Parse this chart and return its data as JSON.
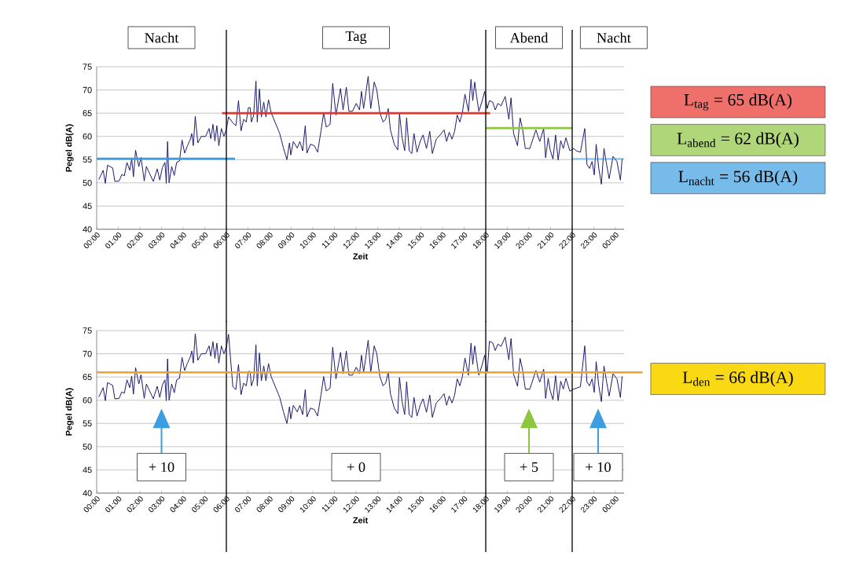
{
  "chart_data": [
    {
      "type": "line",
      "xlabel": "Zeit",
      "ylabel": "Pegel dB(A)",
      "annotations": [
        "Nacht",
        "Tag",
        "Abend",
        "Nacht"
      ],
      "xlim": [
        0,
        24.4
      ],
      "ylim": [
        40,
        75
      ],
      "yticks": [
        40,
        45,
        50,
        55,
        60,
        65,
        70,
        75
      ],
      "xticks": [
        {
          "value": 0,
          "label": "00:00"
        },
        {
          "value": 1,
          "label": "01:00"
        },
        {
          "value": 2,
          "label": "02:00"
        },
        {
          "value": 3,
          "label": "03:00"
        },
        {
          "value": 4,
          "label": "04:00"
        },
        {
          "value": 5,
          "label": "05:00"
        },
        {
          "value": 6,
          "label": "06:00"
        },
        {
          "value": 7,
          "label": "07:00"
        },
        {
          "value": 8,
          "label": "08:00"
        },
        {
          "value": 9,
          "label": "09:00"
        },
        {
          "value": 10,
          "label": "10:00"
        },
        {
          "value": 11,
          "label": "11:00"
        },
        {
          "value": 12,
          "label": "12:00"
        },
        {
          "value": 13,
          "label": "13:00"
        },
        {
          "value": 14,
          "label": "14:00"
        },
        {
          "value": 15,
          "label": "15:00"
        },
        {
          "value": 16,
          "label": "16:00"
        },
        {
          "value": 17,
          "label": "17:00"
        },
        {
          "value": 18,
          "label": "18:00"
        },
        {
          "value": 19,
          "label": "19:00"
        },
        {
          "value": 20,
          "label": "20:00"
        },
        {
          "value": 21,
          "label": "21:00"
        },
        {
          "value": 22,
          "label": "22:00"
        },
        {
          "value": 23,
          "label": "23:00"
        },
        {
          "value": 24,
          "label": "00:00"
        }
      ],
      "grid": "y",
      "legend": "right",
      "marker": "none",
      "ref_lines": [
        {
          "axis": "x",
          "value": 6,
          "color": "#000000"
        },
        {
          "axis": "x",
          "value": 18,
          "color": "#000000"
        },
        {
          "axis": "x",
          "value": 22,
          "color": "#000000"
        }
      ],
      "series": [
        {
          "color": "#1a1a6e",
          "x": [
            0.1,
            0.3,
            0.4,
            0.5,
            0.74,
            0.84,
            1.04,
            1.16,
            1.28,
            1.4,
            1.53,
            1.62,
            1.7,
            1.8,
            1.95,
            2.05,
            2.2,
            2.3,
            2.44,
            2.62,
            2.8,
            2.92,
            3.04,
            3.16,
            3.22,
            3.28,
            3.35,
            3.47,
            3.59,
            3.7,
            3.83,
            3.95,
            4.07,
            4.2,
            4.32,
            4.4,
            4.47,
            4.56,
            4.68,
            4.84,
            5.04,
            5.2,
            5.28,
            5.38,
            5.47,
            5.56,
            5.65,
            5.77,
            5.89,
            6.01,
            6.1,
            6.3,
            6.44,
            6.56,
            6.68,
            6.8,
            6.92,
            7.02,
            7.1,
            7.16,
            7.26,
            7.37,
            7.43,
            7.53,
            7.62,
            7.73,
            7.83,
            7.95,
            8.07,
            8.32,
            8.47,
            8.64,
            8.8,
            8.92,
            8.98,
            9.1,
            9.28,
            9.4,
            9.53,
            9.65,
            9.73,
            9.89,
            10.07,
            10.22,
            10.38,
            10.5,
            10.62,
            10.8,
            10.92,
            11.07,
            11.28,
            11.4,
            11.55,
            11.67,
            11.83,
            12.01,
            12.16,
            12.25,
            12.35,
            12.44,
            12.56,
            12.68,
            12.84,
            12.96,
            13.1,
            13.25,
            13.37,
            13.49,
            13.59,
            13.77,
            13.93,
            14.01,
            14.13,
            14.25,
            14.34,
            14.46,
            14.58,
            14.68,
            14.82,
            14.98,
            15.1,
            15.26,
            15.41,
            15.53,
            15.71,
            15.89,
            16.07,
            16.19,
            16.31,
            16.44,
            16.56,
            16.68,
            16.8,
            16.92,
            17.04,
            17.2,
            17.32,
            17.4,
            17.49,
            17.58,
            17.68,
            17.82,
            17.95,
            18.07,
            18.17,
            18.32,
            18.44,
            18.56,
            18.71,
            18.9,
            19.07,
            19.17,
            19.29,
            19.47,
            19.59,
            19.71,
            19.83,
            20.04,
            20.32,
            20.5,
            20.68,
            20.77,
            20.89,
            20.98,
            21.11,
            21.23,
            21.35,
            21.47,
            21.59,
            21.71,
            21.89,
            22.07,
            22.19,
            22.38,
            22.58,
            22.68,
            22.8,
            22.92,
            23.02,
            23.11,
            23.23,
            23.35,
            23.47,
            23.59,
            23.71,
            23.89,
            24.07,
            24.23,
            24.31
          ],
          "values": [
            50.7,
            52.7,
            49.9,
            53.8,
            53.2,
            50.3,
            50.4,
            51.8,
            51.5,
            54.4,
            52.7,
            55.2,
            51.3,
            57,
            53.5,
            55.5,
            50.4,
            53.5,
            52.1,
            50.3,
            53,
            50.6,
            53.3,
            54.4,
            49.9,
            58.9,
            50,
            53.5,
            51.6,
            54.4,
            54.7,
            59.2,
            56.4,
            58,
            59.2,
            60.6,
            58,
            64.3,
            58.6,
            60,
            60,
            61.7,
            59.5,
            62.6,
            59,
            62.3,
            58,
            61.7,
            60,
            61.7,
            64.2,
            62.9,
            62.3,
            67.7,
            61.2,
            63.7,
            63.1,
            66.2,
            66.2,
            63.1,
            64.5,
            71.9,
            63.1,
            70.2,
            64.2,
            67.4,
            64.2,
            67.9,
            65.1,
            62.3,
            60.6,
            57.5,
            55,
            58.6,
            56,
            58.9,
            57.5,
            58.9,
            56.9,
            62.3,
            56.4,
            58.3,
            58,
            56.6,
            61.2,
            65.1,
            62,
            62.6,
            71.4,
            64.6,
            70.3,
            65.7,
            70.6,
            65.4,
            65.4,
            67.1,
            65.7,
            69.7,
            66,
            68.9,
            72.9,
            66,
            71.7,
            70,
            65.1,
            63.1,
            63.7,
            66,
            61.4,
            58.3,
            57.1,
            64.9,
            59.7,
            56.9,
            64,
            56.9,
            56.3,
            60.6,
            56.6,
            59.1,
            60.3,
            57.4,
            61.1,
            56.3,
            59.4,
            60.3,
            61.4,
            58.9,
            60.9,
            59.4,
            61.1,
            64.6,
            63.1,
            65.1,
            69.1,
            65.4,
            72.3,
            67.7,
            71.7,
            68.6,
            65.4,
            67.4,
            69.7,
            66,
            67.7,
            67.4,
            65.7,
            67.1,
            66.6,
            68.6,
            63.7,
            68.3,
            60.6,
            58,
            64,
            61.4,
            57.4,
            57.4,
            61.4,
            58.9,
            61.7,
            55.4,
            59.7,
            57.1,
            55.1,
            60.3,
            54.9,
            59.1,
            57.4,
            59.7,
            56.9,
            57.4,
            56.9,
            56.6,
            61.7,
            54,
            53.1,
            54.6,
            51.7,
            58.3,
            53.1,
            49.7,
            57.4,
            54,
            50.9,
            55.7,
            54.6,
            50.6,
            55.1
          ]
        },
        {
          "name": "L$_{tag}$ = 65 dB(A)",
          "color": "#e8322b",
          "x": [
            5.8,
            18.2
          ],
          "values": [
            65,
            65
          ]
        },
        {
          "name": "L$_{abend}$ = 62 dB(A)",
          "color": "#8dc63f",
          "x": [
            18,
            22
          ],
          "values": [
            61.8,
            61.8
          ]
        },
        {
          "name": "L$_{nacht}$ = 56 dB(A)",
          "color": "#3c9ee0",
          "x": [
            0,
            6.4
          ],
          "values": [
            55.2,
            55.2
          ]
        },
        {
          "color": "#3c9ee0",
          "x": [
            22,
            24.4
          ],
          "values": [
            55.2,
            55.2
          ]
        }
      ]
    },
    {
      "type": "line",
      "xlabel": "Zeit",
      "ylabel": "Pegel dB(A)",
      "annotations": [
        "+ 10",
        "+ 0",
        "+ 5",
        "+ 10"
      ],
      "xlim": [
        0,
        24.4
      ],
      "ylim": [
        40,
        75
      ],
      "yticks": [
        40,
        45,
        50,
        55,
        60,
        65,
        70,
        75
      ],
      "xticks": [
        {
          "value": 0,
          "label": "00:00"
        },
        {
          "value": 1,
          "label": "01:00"
        },
        {
          "value": 2,
          "label": "02:00"
        },
        {
          "value": 3,
          "label": "03:00"
        },
        {
          "value": 4,
          "label": "04:00"
        },
        {
          "value": 5,
          "label": "05:00"
        },
        {
          "value": 6,
          "label": "06:00"
        },
        {
          "value": 7,
          "label": "07:00"
        },
        {
          "value": 8,
          "label": "08:00"
        },
        {
          "value": 9,
          "label": "09:00"
        },
        {
          "value": 10,
          "label": "10:00"
        },
        {
          "value": 11,
          "label": "11:00"
        },
        {
          "value": 12,
          "label": "12:00"
        },
        {
          "value": 13,
          "label": "13:00"
        },
        {
          "value": 14,
          "label": "14:00"
        },
        {
          "value": 15,
          "label": "15:00"
        },
        {
          "value": 16,
          "label": "16:00"
        },
        {
          "value": 17,
          "label": "17:00"
        },
        {
          "value": 18,
          "label": "18:00"
        },
        {
          "value": 19,
          "label": "19:00"
        },
        {
          "value": 20,
          "label": "20:00"
        },
        {
          "value": 21,
          "label": "21:00"
        },
        {
          "value": 22,
          "label": "22:00"
        },
        {
          "value": 23,
          "label": "23:00"
        },
        {
          "value": 24,
          "label": "00:00"
        }
      ],
      "grid": "y",
      "marker": "none",
      "ref_lines": [
        {
          "axis": "x",
          "value": 6,
          "color": "#000000"
        },
        {
          "axis": "x",
          "value": 18,
          "color": "#000000"
        },
        {
          "axis": "x",
          "value": 22,
          "color": "#000000"
        },
        {
          "axis": "y",
          "value": 66,
          "label": "L$_{den}$ = 66 dB(A)",
          "color": "#f0a030"
        }
      ],
      "series": [
        {
          "color": "#1a1a6e",
          "x": [
            0.1,
            0.3,
            0.4,
            0.5,
            0.74,
            0.84,
            1.04,
            1.16,
            1.28,
            1.4,
            1.53,
            1.62,
            1.7,
            1.8,
            1.95,
            2.05,
            2.2,
            2.3,
            2.44,
            2.62,
            2.8,
            2.92,
            3.04,
            3.16,
            3.22,
            3.28,
            3.35,
            3.47,
            3.59,
            3.7,
            3.83,
            3.95,
            4.07,
            4.2,
            4.32,
            4.4,
            4.47,
            4.56,
            4.68,
            4.84,
            5.04,
            5.2,
            5.28,
            5.38,
            5.47,
            5.56,
            5.65,
            5.77,
            5.89,
            6.01,
            6.1,
            6.3,
            6.44,
            6.56,
            6.68,
            6.8,
            6.92,
            7.02,
            7.1,
            7.16,
            7.26,
            7.37,
            7.43,
            7.53,
            7.62,
            7.73,
            7.83,
            7.95,
            8.07,
            8.32,
            8.47,
            8.64,
            8.8,
            8.92,
            8.98,
            9.1,
            9.28,
            9.4,
            9.53,
            9.65,
            9.73,
            9.89,
            10.07,
            10.22,
            10.38,
            10.5,
            10.62,
            10.8,
            10.92,
            11.07,
            11.28,
            11.4,
            11.55,
            11.67,
            11.83,
            12.01,
            12.16,
            12.25,
            12.35,
            12.44,
            12.56,
            12.68,
            12.84,
            12.96,
            13.1,
            13.25,
            13.37,
            13.49,
            13.59,
            13.77,
            13.93,
            14.01,
            14.13,
            14.25,
            14.34,
            14.46,
            14.58,
            14.68,
            14.82,
            14.98,
            15.1,
            15.26,
            15.41,
            15.53,
            15.71,
            15.89,
            16.07,
            16.19,
            16.31,
            16.44,
            16.56,
            16.68,
            16.8,
            16.92,
            17.04,
            17.2,
            17.32,
            17.4,
            17.49,
            17.58,
            17.68,
            17.82,
            17.95,
            18.07,
            18.17,
            18.32,
            18.44,
            18.56,
            18.71,
            18.9,
            19.07,
            19.17,
            19.29,
            19.47,
            19.59,
            19.71,
            19.83,
            20.04,
            20.32,
            20.5,
            20.68,
            20.77,
            20.89,
            20.98,
            21.11,
            21.23,
            21.35,
            21.47,
            21.59,
            21.71,
            21.89,
            22.07,
            22.19,
            22.38,
            22.58,
            22.68,
            22.8,
            22.92,
            23.02,
            23.11,
            23.23,
            23.35,
            23.47,
            23.59,
            23.71,
            23.89,
            24.07,
            24.23,
            24.31
          ],
          "values": [
            60.7,
            62.7,
            59.9,
            63.8,
            63.2,
            60.3,
            60.4,
            61.8,
            61.5,
            64.4,
            62.7,
            65.2,
            61.3,
            67,
            63.5,
            65.5,
            60.4,
            63.5,
            62.1,
            60.3,
            63,
            60.6,
            63.3,
            64.4,
            59.9,
            68.9,
            60,
            63.5,
            61.6,
            64.4,
            64.7,
            69.2,
            66.4,
            68,
            69.2,
            70.6,
            68,
            74.3,
            68.6,
            70,
            70,
            71.7,
            69.5,
            72.6,
            69,
            72.3,
            68,
            71.7,
            70,
            71.7,
            74.2,
            62.9,
            62.3,
            67.7,
            61.2,
            63.7,
            63.1,
            66.2,
            66.2,
            63.1,
            64.5,
            71.9,
            63.1,
            70.2,
            64.2,
            67.4,
            64.2,
            67.9,
            65.1,
            62.3,
            60.6,
            57.5,
            55,
            58.6,
            56,
            58.9,
            57.5,
            58.9,
            56.9,
            62.3,
            56.4,
            58.3,
            58,
            56.6,
            61.2,
            65.1,
            62,
            62.6,
            71.4,
            64.6,
            70.3,
            65.7,
            70.6,
            65.4,
            65.4,
            67.1,
            65.7,
            69.7,
            66,
            68.9,
            72.9,
            66,
            71.7,
            70,
            65.1,
            63.1,
            63.7,
            66,
            61.4,
            58.3,
            57.1,
            64.9,
            59.7,
            56.9,
            64,
            56.9,
            56.3,
            60.6,
            56.6,
            59.1,
            60.3,
            57.4,
            61.1,
            56.3,
            59.4,
            60.3,
            61.4,
            58.9,
            60.9,
            59.4,
            61.1,
            64.6,
            63.1,
            65.1,
            69.1,
            65.4,
            72.3,
            67.7,
            71.7,
            68.6,
            65.4,
            67.4,
            69.7,
            66,
            72.7,
            72.4,
            70.7,
            72.1,
            71.6,
            73.6,
            68.7,
            73.3,
            65.6,
            63,
            69,
            66.4,
            62.4,
            62.4,
            66.4,
            63.9,
            66.7,
            60.4,
            64.7,
            62.1,
            60.1,
            65.3,
            59.9,
            64.1,
            62.4,
            64.7,
            61.9,
            62.4,
            62.6,
            62.9,
            71.7,
            64,
            63.1,
            64.6,
            61.7,
            68.3,
            63.1,
            59.7,
            67.4,
            64,
            60.9,
            65.7,
            64.6,
            60.6,
            65.1
          ]
        }
      ]
    }
  ]
}
